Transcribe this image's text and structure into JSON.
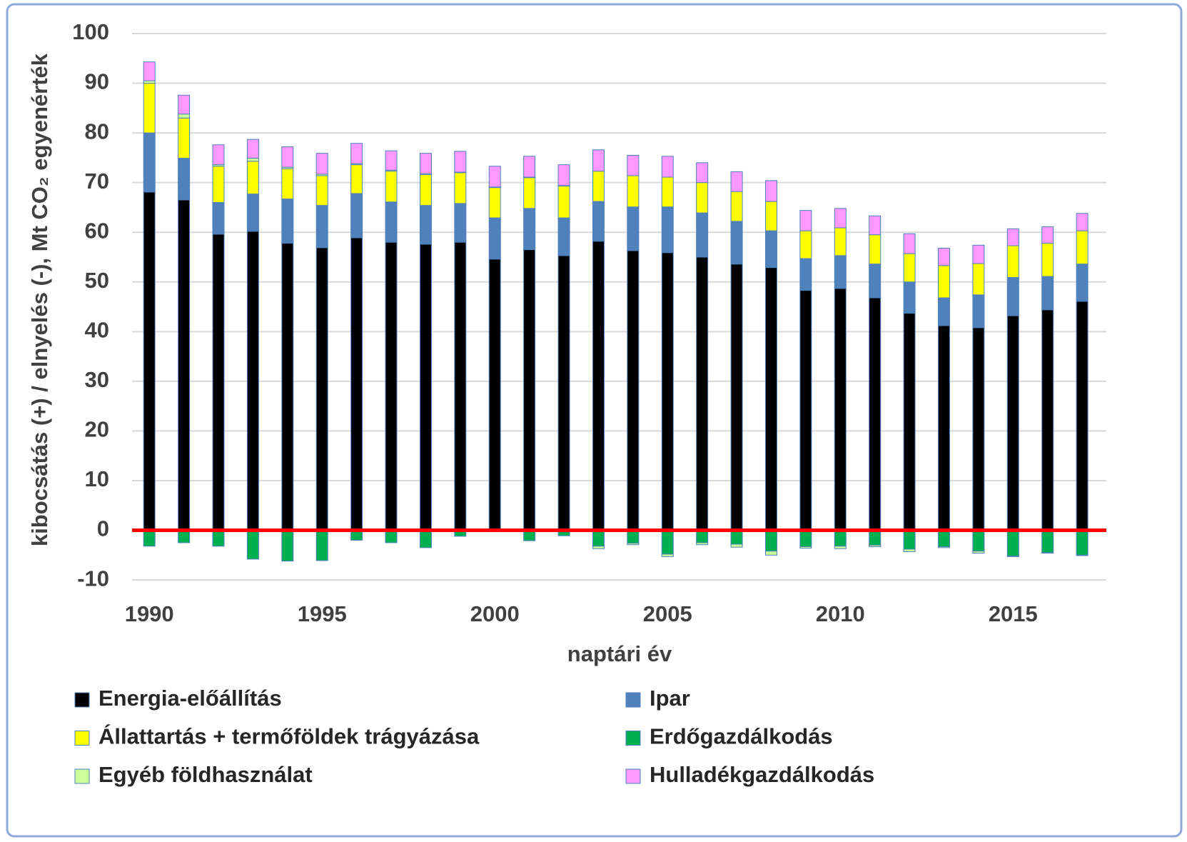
{
  "chart_data": {
    "type": "bar",
    "y_label": "kibocsátás (+) / elnyelés (-), Mt CO₂ egyenérték",
    "x_label": "naptári év",
    "x": [
      1990,
      1991,
      1992,
      1993,
      1994,
      1995,
      1996,
      1997,
      1998,
      1999,
      2000,
      2001,
      2002,
      2003,
      2004,
      2005,
      2006,
      2007,
      2008,
      2009,
      2010,
      2011,
      2012,
      2013,
      2014,
      2015,
      2016,
      2017
    ],
    "series": [
      {
        "name": "Energia-előállítás",
        "color": "#000000",
        "values": [
          68.1,
          66.5,
          59.6,
          60.2,
          57.8,
          56.9,
          58.9,
          58,
          57.6,
          58,
          54.6,
          56.5,
          55.3,
          58.2,
          56.3,
          55.9,
          55,
          53.6,
          52.9,
          48.3,
          48.7,
          46.8,
          43.7,
          41.2,
          40.8,
          43.2,
          44.4,
          46.1
        ]
      },
      {
        "name": "Ipar",
        "color": "#4f81bd",
        "values": [
          11.9,
          8.4,
          6.4,
          7.5,
          8.9,
          8.5,
          8.9,
          8.1,
          7.8,
          7.8,
          8.3,
          8.3,
          7.6,
          8,
          8.8,
          9.2,
          8.9,
          8.6,
          7.4,
          6.4,
          6.6,
          6.8,
          6.3,
          5.6,
          6.6,
          7.7,
          6.7,
          7.5
        ]
      },
      {
        "name": "Állattartás + termőföldek trágyázása",
        "color": "#ffff00",
        "values": [
          10,
          8.1,
          7.3,
          6.6,
          6.1,
          6,
          5.8,
          6.2,
          6.2,
          6.2,
          6.1,
          6.2,
          6.4,
          6.1,
          6.3,
          6,
          6.1,
          6,
          5.9,
          5.6,
          5.6,
          5.9,
          5.7,
          6.5,
          6.3,
          6.4,
          6.7,
          6.7
        ]
      },
      {
        "name": "Erdőgazdálkodás",
        "color": "#00b050",
        "values": [
          -3.2,
          -2.5,
          -3.2,
          -5.8,
          -6.2,
          -6.1,
          -2,
          -2.5,
          -3.5,
          -1.2,
          -0.2,
          -2.1,
          -1.1,
          -3.2,
          -2.6,
          -4.8,
          -2.5,
          -2.8,
          -4.2,
          -3.3,
          -3.2,
          -3,
          -3.8,
          -3.3,
          -4.2,
          -5.2,
          -4.5,
          -5
        ]
      },
      {
        "name": "Egyéb földhasználat",
        "color": "#ccff99",
        "values": [
          0.5,
          0.8,
          0.3,
          0.6,
          0.3,
          0.3,
          0.2,
          0.2,
          0.2,
          0.1,
          0.1,
          0.1,
          0.1,
          -0.5,
          -0.3,
          -0.5,
          -0.4,
          -0.6,
          -0.8,
          -0.3,
          -0.5,
          -0.3,
          -0.5,
          -0.2,
          -0.4,
          -0.1,
          -0.1,
          -0.1
        ]
      },
      {
        "name": "Hulladékgazdálkodás",
        "color": "#ff99ff",
        "values": [
          3.8,
          3.8,
          4,
          3.8,
          4.1,
          4.2,
          4.1,
          3.9,
          4.1,
          4.2,
          4.2,
          4.2,
          4.2,
          4.3,
          4.1,
          4.2,
          4,
          4,
          4.2,
          4.1,
          3.9,
          3.8,
          4,
          3.5,
          3.7,
          3.4,
          3.3,
          3.5
        ]
      }
    ],
    "xlim": [
      1989.5,
      2017.7
    ],
    "xticks": [
      1990,
      1995,
      2000,
      2005,
      2010,
      2015
    ],
    "ylim": [
      -12,
      100
    ],
    "yticks": [
      -10,
      0,
      10,
      20,
      30,
      40,
      50,
      60,
      70,
      80,
      90,
      100
    ],
    "grid": true,
    "zero_line_color": "#ff0000",
    "legend": "bottom"
  }
}
